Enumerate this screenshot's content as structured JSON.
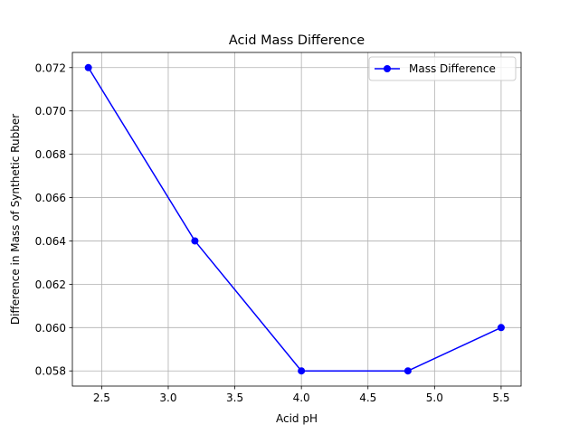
{
  "chart_data": {
    "type": "line",
    "title": "Acid Mass Difference",
    "xlabel": "Acid pH",
    "ylabel": "Difference in Mass of Synthetic Rubber",
    "xlim": [
      2.28,
      5.65
    ],
    "ylim": [
      0.0573,
      0.0727
    ],
    "x_ticks": [
      2.5,
      3.0,
      3.5,
      4.0,
      4.5,
      5.0,
      5.5
    ],
    "x_tick_labels": [
      "2.5",
      "3.0",
      "3.5",
      "4.0",
      "4.5",
      "5.0",
      "5.5"
    ],
    "y_ticks": [
      0.058,
      0.06,
      0.062,
      0.064,
      0.066,
      0.068,
      0.07,
      0.072
    ],
    "y_tick_labels": [
      "0.058",
      "0.060",
      "0.062",
      "0.064",
      "0.066",
      "0.068",
      "0.070",
      "0.072"
    ],
    "grid": true,
    "legend_position": "top-right",
    "series": [
      {
        "name": "Mass Difference",
        "color": "#0000ff",
        "marker": "circle",
        "x": [
          2.4,
          3.2,
          4.0,
          4.8,
          5.5
        ],
        "y": [
          0.072,
          0.064,
          0.058,
          0.058,
          0.06
        ]
      }
    ]
  }
}
